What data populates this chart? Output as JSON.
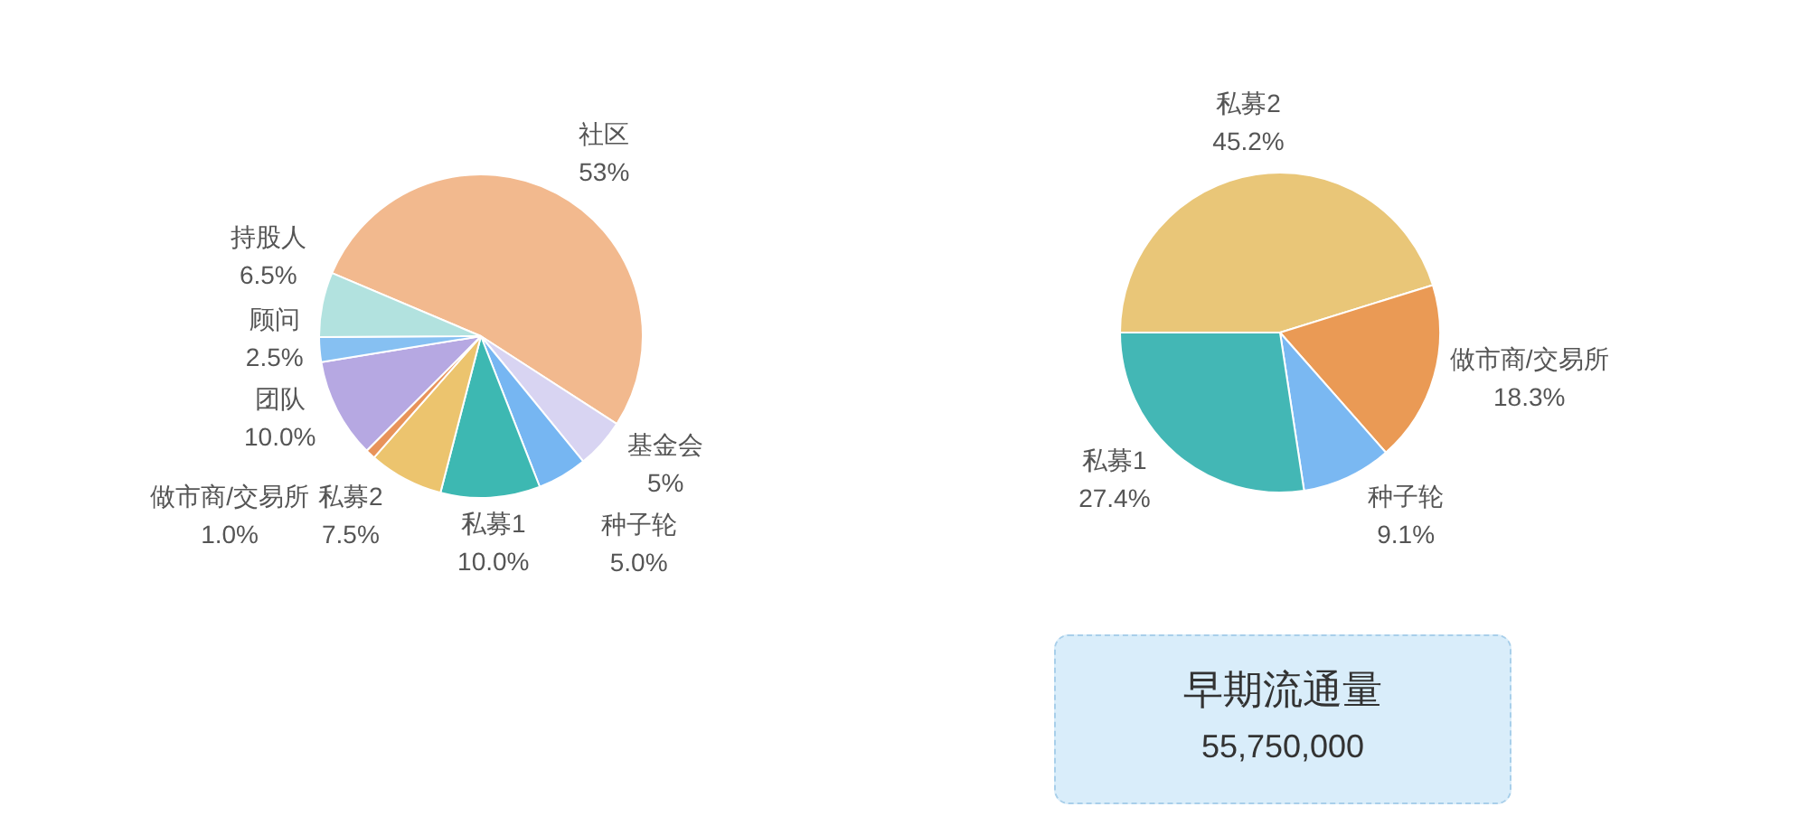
{
  "chart_data": [
    {
      "type": "pie",
      "categories": [
        "社区",
        "基金会",
        "种子轮",
        "私募1",
        "私募2",
        "做市商/交易所",
        "团队",
        "顾问",
        "持股人"
      ],
      "values": [
        53,
        5,
        5,
        10,
        7.5,
        1,
        10,
        2.5,
        6.5
      ],
      "colors": [
        "#f2b98e",
        "#d8d4f2",
        "#76b6f2",
        "#3db8b2",
        "#ecc46e",
        "#e8935a",
        "#b6a8e2",
        "#86c0f2",
        "#b2e2df"
      ],
      "value_labels": [
        "53%",
        "5%",
        "5.0%",
        "10.0%",
        "7.5%",
        "1.0%",
        "10.0%",
        "2.5%",
        "6.5%"
      ]
    },
    {
      "type": "pie",
      "categories": [
        "私募2",
        "做市商/交易所",
        "种子轮",
        "私募1"
      ],
      "values": [
        45.2,
        18.3,
        9.1,
        27.4
      ],
      "colors": [
        "#e9c678",
        "#ea9a55",
        "#7ab8f2",
        "#43b7b5"
      ],
      "value_labels": [
        "45.2%",
        "18.3%",
        "9.1%",
        "27.4%"
      ],
      "annotations": [
        "早期流通量",
        "55,750,000"
      ]
    }
  ]
}
